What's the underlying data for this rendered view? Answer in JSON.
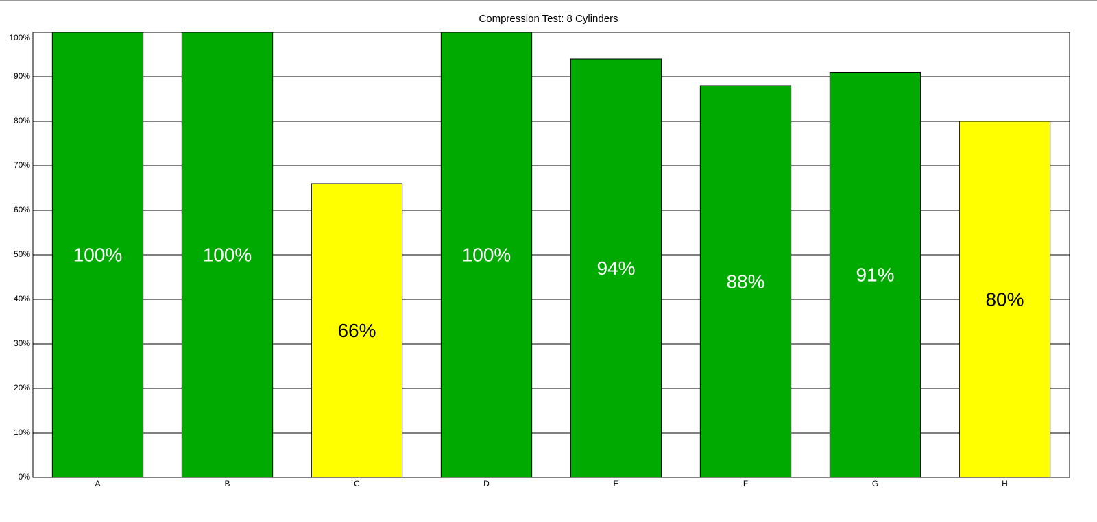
{
  "chart_data": {
    "type": "bar",
    "title": "Compression Test: 8 Cylinders",
    "categories": [
      "A",
      "B",
      "C",
      "D",
      "E",
      "F",
      "G",
      "H"
    ],
    "values": [
      100,
      100,
      66,
      100,
      94,
      88,
      91,
      80
    ],
    "value_labels": [
      "100%",
      "100%",
      "66%",
      "100%",
      "94%",
      "88%",
      "91%",
      "80%"
    ],
    "colors": [
      "#00aa00",
      "#00aa00",
      "#ffff00",
      "#00aa00",
      "#00aa00",
      "#00aa00",
      "#00aa00",
      "#ffff00"
    ],
    "label_colors": [
      "#ffffff",
      "#ffffff",
      "#000000",
      "#ffffff",
      "#ffffff",
      "#ffffff",
      "#ffffff",
      "#000000"
    ],
    "ylim": [
      0,
      100
    ],
    "yticks": [
      {
        "value": 0,
        "label": "0%"
      },
      {
        "value": 10,
        "label": "10%"
      },
      {
        "value": 20,
        "label": "20%"
      },
      {
        "value": 30,
        "label": "30%"
      },
      {
        "value": 40,
        "label": "40%"
      },
      {
        "value": 50,
        "label": "50%"
      },
      {
        "value": 60,
        "label": "60%"
      },
      {
        "value": 70,
        "label": "70%"
      },
      {
        "value": 80,
        "label": "80%"
      },
      {
        "value": 90,
        "label": "90%"
      },
      {
        "value": 100,
        "label": "100%"
      }
    ],
    "grid": true
  }
}
